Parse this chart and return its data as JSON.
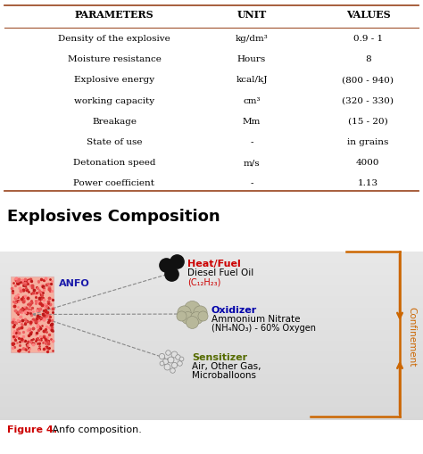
{
  "table_headers": [
    "PARAMETERS",
    "UNIT",
    "VALUES"
  ],
  "table_rows": [
    [
      "Density of the explosive",
      "kg/dm³",
      "0.9 - 1"
    ],
    [
      "Moisture resistance",
      "Hours",
      "8"
    ],
    [
      "Explosive energy",
      "kcal/kJ",
      "(800 - 940)"
    ],
    [
      "working capacity",
      "cm³",
      "(320 - 330)"
    ],
    [
      "Breakage",
      "Mm",
      "(15 - 20)"
    ],
    [
      "State of use",
      "-",
      "in grains"
    ],
    [
      "Detonation speed",
      "m/s",
      "4000"
    ],
    [
      "Power coefficient",
      "-",
      "1.13"
    ]
  ],
  "section_title": "Explosives Composition",
  "anfo_label": "ANFO",
  "heat_fuel_label": "Heat/Fuel",
  "heat_fuel_sub": "Diesel Fuel Oil",
  "heat_fuel_formula": "(C₁₂H₂₃)",
  "oxidizer_label": "Oxidizer",
  "oxidizer_sub": "Ammonium Nitrate",
  "oxidizer_formula": "(NH₄NO₃) - 60% Oxygen",
  "sensitizer_label": "Sensitizer",
  "sensitizer_sub": "Air, Other Gas,",
  "sensitizer_sub2": "Microballoons",
  "confinement_label": "Confinement",
  "figure_caption_bold": "Figure 4.",
  "figure_caption_normal": " Anfo composition.",
  "bg_color": "#ffffff",
  "table_line_color": "#a0522d",
  "heat_color": "#cc0000",
  "oxidizer_color": "#0000aa",
  "sensitizer_color": "#556B00",
  "confinement_color": "#cc6600",
  "anfo_color": "#1a1aaa",
  "fig4_color": "#cc0000",
  "diagram_bg_top": "#e8e8e8",
  "diagram_bg_bottom": "#c8c8c8"
}
